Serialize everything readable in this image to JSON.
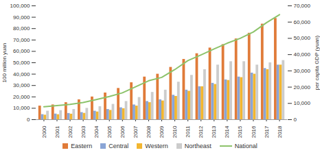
{
  "chart_data": {
    "type": "bar",
    "y_label": "100 million yuan",
    "y2_label": "per capita GDP (yuan)",
    "categories": [
      "2000",
      "2001",
      "2002",
      "2003",
      "2004",
      "2005",
      "2006",
      "2007",
      "2008",
      "2009",
      "2010",
      "2011",
      "2012",
      "2013",
      "2014",
      "2015",
      "2016",
      "2017",
      "2018"
    ],
    "series": [
      {
        "name": "Eastern",
        "type": "bar",
        "color": "#e07b39",
        "values": [
          12000,
          13000,
          15000,
          17500,
          20000,
          23500,
          27500,
          32500,
          37500,
          40000,
          46000,
          53000,
          58000,
          63000,
          66000,
          71000,
          76000,
          84000,
          89000
        ]
      },
      {
        "name": "Central",
        "type": "bar",
        "color": "#8aa5d6",
        "values": [
          4500,
          5000,
          5500,
          6300,
          7500,
          9000,
          10500,
          13000,
          16000,
          17500,
          21500,
          26000,
          29000,
          32000,
          35000,
          37500,
          41000,
          45000,
          48000
        ]
      },
      {
        "name": "Western",
        "type": "bar",
        "color": "#f2b630",
        "values": [
          4000,
          4400,
          4900,
          5600,
          6800,
          8200,
          9700,
          12000,
          15000,
          16500,
          20500,
          25000,
          29000,
          31000,
          34500,
          37000,
          40000,
          44000,
          48000
        ]
      },
      {
        "name": "Northeast",
        "type": "bar",
        "color": "#cccccc",
        "values": [
          7500,
          8000,
          9000,
          10000,
          11500,
          13500,
          16000,
          19500,
          24000,
          26000,
          33000,
          39000,
          44000,
          48000,
          51000,
          51000,
          48000,
          50000,
          52000
        ]
      },
      {
        "name": "National",
        "type": "line",
        "axis": "y2",
        "color": "#8dc36b",
        "values": [
          7900,
          8600,
          9400,
          10500,
          12300,
          14200,
          16500,
          20200,
          23900,
          26000,
          30800,
          36300,
          39800,
          43500,
          47000,
          50000,
          53900,
          59600,
          64600
        ]
      }
    ],
    "ylim": [
      0,
      100000
    ],
    "yticks": [
      0,
      {
        "value": 10000,
        "label": "10,000"
      },
      {
        "value": 20000,
        "label": "20,000"
      },
      {
        "value": 30000,
        "label": "30,000"
      },
      {
        "value": 40000,
        "label": "40,000"
      },
      {
        "value": 50000,
        "label": "50,000"
      },
      {
        "value": 60000,
        "label": "60,000"
      },
      {
        "value": 70000,
        "label": "70,000"
      },
      {
        "value": 80000,
        "label": "80,000"
      },
      {
        "value": 90000,
        "label": "90,000"
      },
      {
        "value": 100000,
        "label": "100,000"
      }
    ],
    "y2lim": [
      0,
      70000
    ],
    "y2ticks": [
      0,
      {
        "value": 10000,
        "label": "10,000"
      },
      {
        "value": 20000,
        "label": "20,000"
      },
      {
        "value": 30000,
        "label": "30,000"
      },
      {
        "value": 40000,
        "label": "40,000"
      },
      {
        "value": 50000,
        "label": "50,000"
      },
      {
        "value": 60000,
        "label": "60,000"
      },
      {
        "value": 70000,
        "label": "70,000"
      }
    ],
    "grid": false,
    "legend": "bottom"
  }
}
